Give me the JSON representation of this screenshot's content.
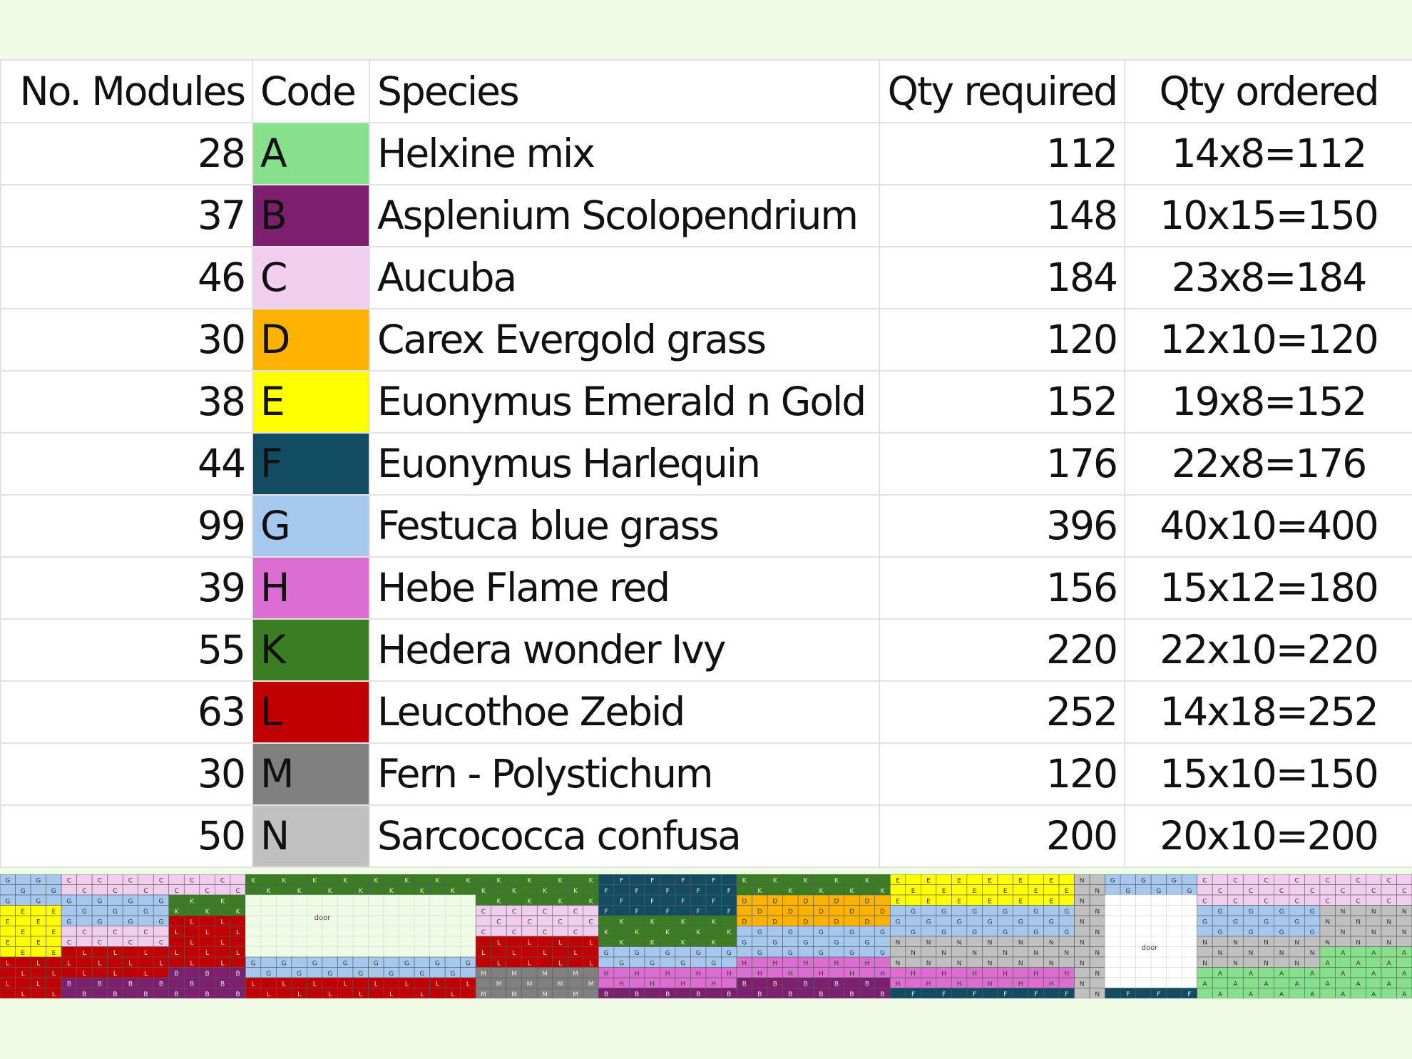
{
  "table": {
    "headers": {
      "modules": "No. Modules",
      "code": "Code",
      "species": "Species",
      "qty_required": "Qty required",
      "qty_ordered": "Qty ordered"
    },
    "rows": [
      {
        "modules": "28",
        "code": "A",
        "species": "Helxine mix",
        "qty_required": "112",
        "qty_ordered": "14x8=112",
        "color": "#86e08c"
      },
      {
        "modules": "37",
        "code": "B",
        "species": "Asplenium Scolopendrium",
        "qty_required": "148",
        "qty_ordered": "10x15=150",
        "color": "#7b1f6e"
      },
      {
        "modules": "46",
        "code": "C",
        "species": "Aucuba",
        "qty_required": "184",
        "qty_ordered": "23x8=184",
        "color": "#f1cdee"
      },
      {
        "modules": "30",
        "code": "D",
        "species": "Carex Evergold grass",
        "qty_required": "120",
        "qty_ordered": "12x10=120",
        "color": "#ffb300"
      },
      {
        "modules": "38",
        "code": "E",
        "species": "Euonymus Emerald n Gold",
        "qty_required": "152",
        "qty_ordered": "19x8=152",
        "color": "#ffff00"
      },
      {
        "modules": "44",
        "code": "F",
        "species": "Euonymus Harlequin",
        "qty_required": "176",
        "qty_ordered": "22x8=176",
        "color": "#124c63"
      },
      {
        "modules": "99",
        "code": "G",
        "species": "Festuca blue grass",
        "qty_required": "396",
        "qty_ordered": "40x10=400",
        "color": "#a6c8ee"
      },
      {
        "modules": "39",
        "code": "H",
        "species": "Hebe Flame red",
        "qty_required": "156",
        "qty_ordered": "15x12=180",
        "color": "#dc6ed2"
      },
      {
        "modules": "55",
        "code": "K",
        "species": "Hedera wonder Ivy",
        "qty_required": "220",
        "qty_ordered": "22x10=220",
        "color": "#3b7d22"
      },
      {
        "modules": "63",
        "code": "L",
        "species": "Leucothoe Zebid",
        "qty_required": "252",
        "qty_ordered": "14x18=252",
        "color": "#c00000"
      },
      {
        "modules": "30",
        "code": "M",
        "species": "Fern - Polystichum",
        "qty_required": "120",
        "qty_ordered": "15x10=150",
        "color": "#808080"
      },
      {
        "modules": "50",
        "code": "N",
        "species": "Sarcococca confusa",
        "qty_required": "200",
        "qty_ordered": "20x10=200",
        "color": "#c0c0c0"
      }
    ]
  },
  "map": {
    "panel_label_1": "door",
    "panel_label_2": "door",
    "code_labels": [
      "C",
      "E",
      "G",
      "K",
      "F",
      "L",
      "D",
      "H",
      "N",
      "M",
      "A",
      "B"
    ],
    "colors": {
      "A": "#86e08c",
      "B": "#7b1f6e",
      "C": "#f1cdee",
      "D": "#ffb300",
      "E": "#ffff00",
      "F": "#124c63",
      "G": "#a6c8ee",
      "H": "#dc6ed2",
      "K": "#3b7d22",
      "L": "#c00000",
      "M": "#808080",
      "N": "#c0c0c0",
      "blank": "#ffffff",
      "pale": "#eefce6"
    }
  }
}
